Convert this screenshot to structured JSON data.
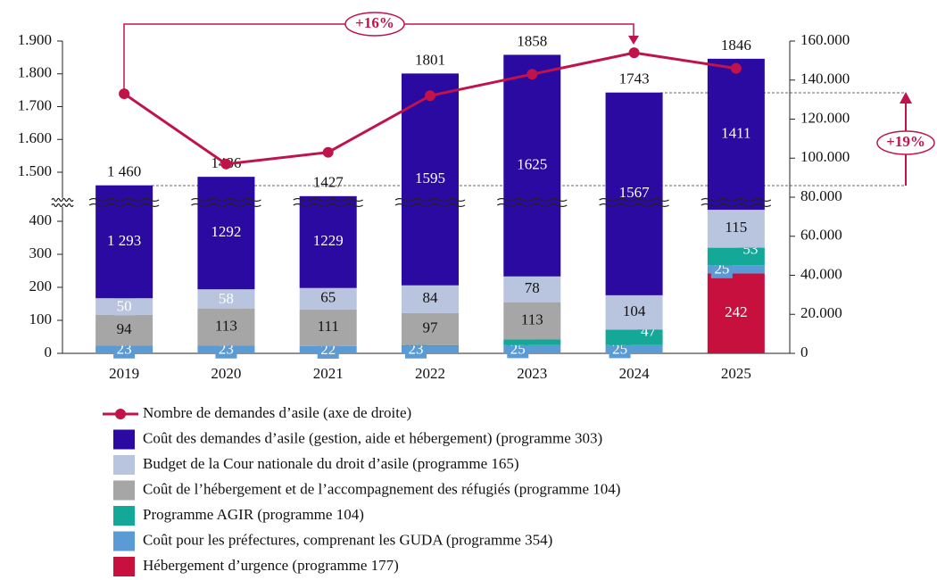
{
  "chart_data": {
    "type": "bar",
    "categories": [
      "2019",
      "2020",
      "2021",
      "2022",
      "2023",
      "2024",
      "2025"
    ],
    "series": [
      {
        "name": "Nombre de demandes d’asile (axe de droite)",
        "type": "line",
        "axis": "y2",
        "color": "#c0134a",
        "values": [
          133000,
          97000,
          103000,
          132000,
          143000,
          154000,
          146000
        ]
      },
      {
        "name": "Coût des demandes d’asile (gestion, aide et hébergement) (programme 303)",
        "color": "#2a0aa0",
        "values": [
          1293,
          1292,
          1229,
          1595,
          1625,
          1567,
          1411
        ],
        "value_labels": [
          "1 293",
          "1292",
          "1229",
          "1595",
          "1625",
          "1567",
          "1411"
        ]
      },
      {
        "name": "Budget de la Cour nationale du droit d’asile (programme 165)",
        "color": "#b9c4de",
        "values": [
          50,
          58,
          65,
          84,
          78,
          104,
          115
        ]
      },
      {
        "name": "Coût de l’hébergement et de l’accompagnement des réfugiés (programme 104)",
        "color": "#a6a6a6",
        "values": [
          94,
          113,
          111,
          97,
          113,
          null,
          null
        ]
      },
      {
        "name": "Programme AGIR (programme 104)",
        "color": "#14a898",
        "values": [
          null,
          null,
          null,
          2,
          17,
          47,
          53
        ]
      },
      {
        "name": "Coût pour les préfectures, comprenant les GUDA (programme 354)",
        "color": "#5b9bd5",
        "values": [
          23,
          23,
          22,
          23,
          25,
          25,
          25
        ]
      },
      {
        "name": "Hébergement d’urgence (programme 177)",
        "color": "#c8103f",
        "values": [
          null,
          null,
          null,
          null,
          null,
          null,
          242
        ]
      }
    ],
    "totals": [
      1460,
      1486,
      1427,
      1801,
      1858,
      1743,
      1846
    ],
    "total_labels": [
      "1 460",
      "1486",
      "1427",
      "1801",
      "1858",
      "1743",
      "1846"
    ],
    "ylim": [
      0,
      450
    ],
    "yticks": [
      0,
      100,
      200,
      300,
      400
    ],
    "ylim_upper": [
      1460,
      1900
    ],
    "yticks_upper": [
      {
        "value": 1500,
        "label": "1.500"
      },
      {
        "value": 1600,
        "label": "1.600"
      },
      {
        "value": 1700,
        "label": "1.700"
      },
      {
        "value": 1800,
        "label": "1.800"
      },
      {
        "value": 1900,
        "label": "1.900"
      }
    ],
    "y2lim": [
      0,
      160000
    ],
    "y2ticks": [
      0,
      {
        "value": 20000,
        "label": "20.000"
      },
      {
        "value": 40000,
        "label": "40.000"
      },
      {
        "value": 60000,
        "label": "60.000"
      },
      {
        "value": 80000,
        "label": "80.000"
      },
      {
        "value": 100000,
        "label": "100.000"
      },
      {
        "value": 120000,
        "label": "120.000"
      },
      {
        "value": 140000,
        "label": "140.000"
      },
      {
        "value": 160000,
        "label": "160.000"
      }
    ],
    "annotations": [
      {
        "text": "+16%"
      },
      {
        "text": "+19%"
      }
    ]
  }
}
